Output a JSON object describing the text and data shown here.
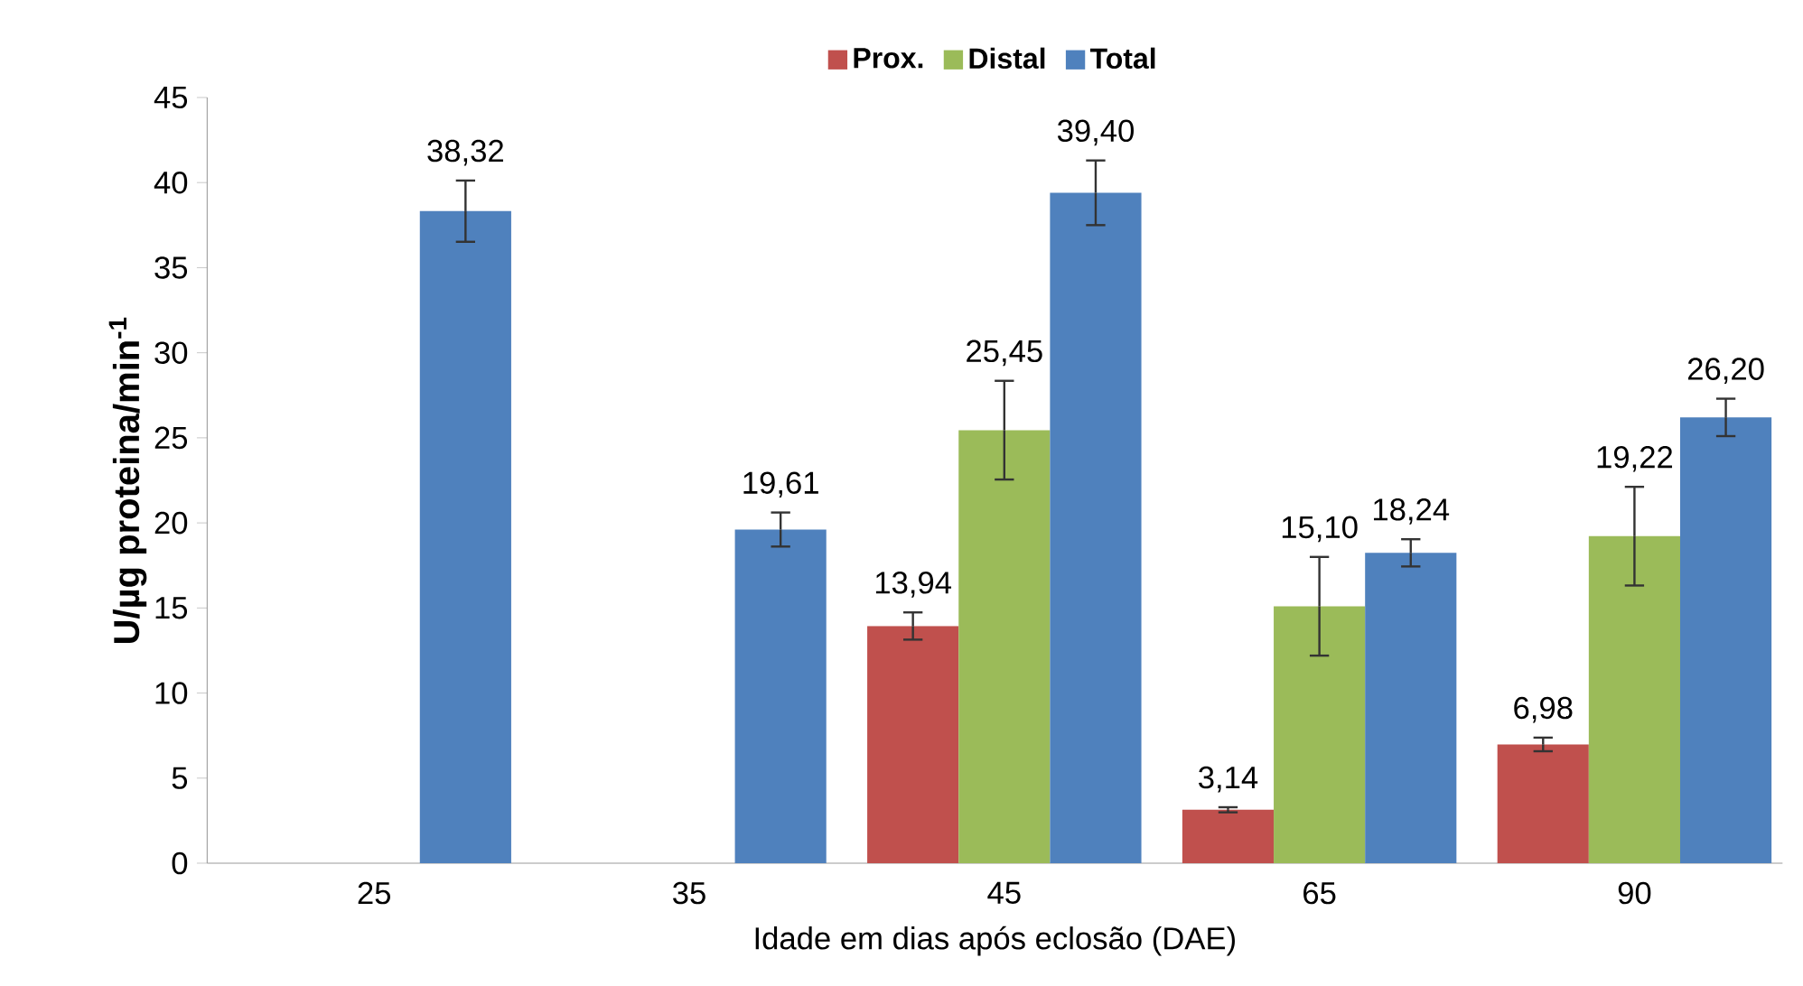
{
  "chart_data": {
    "type": "bar",
    "xlabel": "Idade em dias após eclosão (DAE)",
    "ylabel": "U/µg proteina/min$^{-1}$",
    "categories": [
      "25",
      "35",
      "45",
      "65",
      "90"
    ],
    "ylim": [
      0,
      45
    ],
    "yticks": [
      0,
      5,
      10,
      15,
      20,
      25,
      30,
      35,
      40,
      45
    ],
    "legend": "top",
    "grid": false,
    "series": [
      {
        "name": "Prox.",
        "color": "#c0504d",
        "values": [
          null,
          null,
          13.94,
          3.14,
          6.98
        ],
        "errors": [
          null,
          null,
          0.8,
          0.15,
          0.4
        ],
        "value_labels": [
          null,
          null,
          "13,94",
          "3,14",
          "6,98"
        ]
      },
      {
        "name": "Distal",
        "color": "#9bbb59",
        "values": [
          null,
          null,
          25.45,
          15.1,
          19.22
        ],
        "errors": [
          null,
          null,
          2.9,
          2.9,
          2.9
        ],
        "value_labels": [
          null,
          null,
          "25,45",
          "15,10",
          "19,22"
        ]
      },
      {
        "name": "Total",
        "color": "#4f81bd",
        "values": [
          38.32,
          19.61,
          39.4,
          18.24,
          26.2
        ],
        "errors": [
          1.8,
          1.0,
          1.9,
          0.8,
          1.1
        ],
        "value_labels": [
          "38,32",
          "19,61",
          "39,40",
          "18,24",
          "26,20"
        ]
      }
    ]
  }
}
